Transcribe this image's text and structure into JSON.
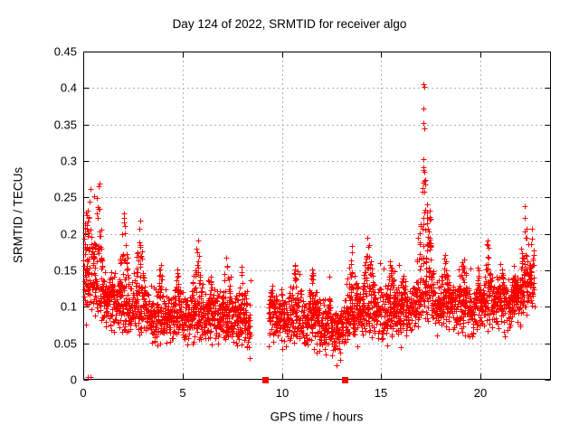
{
  "chart_data": {
    "type": "scatter",
    "title": "Day 124 of 2022, SRMTID for receiver algo",
    "xlabel": "GPS time / hours",
    "ylabel": "SRMTID / TECUs",
    "xlim": [
      0,
      23.55
    ],
    "ylim": [
      0,
      0.45
    ],
    "xticks": [
      0,
      5,
      10,
      15,
      20
    ],
    "xtick_labels": [
      "0",
      "5",
      "10",
      "15",
      "20"
    ],
    "yticks": [
      0,
      0.05,
      0.1,
      0.15,
      0.2,
      0.25,
      0.3,
      0.35,
      0.4,
      0.45
    ],
    "ytick_labels": [
      "0",
      "0.05",
      "0.1",
      "0.15",
      "0.2",
      "0.25",
      "0.3",
      "0.35",
      "0.4",
      "0.45"
    ],
    "grid": true,
    "grid_style": "dashed",
    "grid_color": "#b0b0b0",
    "axis_color": "#000000",
    "background_color": "#ffffff",
    "legend": null,
    "marker": {
      "shape": "plus",
      "size": 7,
      "color": "#ff0000"
    },
    "gap_markers": {
      "shape": "filled-square",
      "size": 7,
      "color": "#ff0000",
      "points": [
        [
          9.2,
          0
        ],
        [
          13.17,
          0
        ]
      ]
    },
    "outlier_points": [
      [
        17.12,
        0.405
      ],
      [
        17.17,
        0.402
      ],
      [
        17.13,
        0.372
      ],
      [
        17.15,
        0.352
      ],
      [
        17.18,
        0.345
      ],
      [
        17.14,
        0.302
      ],
      [
        17.2,
        0.268
      ],
      [
        17.1,
        0.258
      ],
      [
        0.82,
        0.269
      ],
      [
        0.36,
        0.262
      ],
      [
        0.55,
        0.252
      ],
      [
        0.3,
        0.244
      ],
      [
        12.75,
        0.02
      ],
      [
        0.23,
        0.004
      ],
      [
        0.36,
        0.004
      ]
    ],
    "scatter_model": {
      "comment": "Dense multi-satellite scatter ~0.05-0.15 TECU baseline; parameters reconstruct the depicted point cloud",
      "seed": 124124,
      "x_start": 0.02,
      "x_end": 22.72,
      "x_step": 0.01,
      "gap": [
        8.42,
        9.33
      ],
      "noise_sd": 0.016,
      "tail_prob": 0.2,
      "tail_scale": 0.05,
      "extra_point_prob": 0.35,
      "y_floor": 0.024,
      "baseline": [
        [
          0,
          0.125
        ],
        [
          0.4,
          0.118
        ],
        [
          0.8,
          0.112
        ],
        [
          1.2,
          0.102
        ],
        [
          2,
          0.098
        ],
        [
          3,
          0.09
        ],
        [
          3.6,
          0.082
        ],
        [
          4.2,
          0.08
        ],
        [
          5,
          0.084
        ],
        [
          6,
          0.082
        ],
        [
          7,
          0.08
        ],
        [
          7.6,
          0.082
        ],
        [
          8.42,
          0.07
        ],
        [
          9.33,
          0.078
        ],
        [
          10,
          0.08
        ],
        [
          10.8,
          0.083
        ],
        [
          11.5,
          0.078
        ],
        [
          12.2,
          0.07
        ],
        [
          12.7,
          0.062
        ],
        [
          13.1,
          0.068
        ],
        [
          13.5,
          0.088
        ],
        [
          14.2,
          0.092
        ],
        [
          14.8,
          0.096
        ],
        [
          15.2,
          0.082
        ],
        [
          15.8,
          0.09
        ],
        [
          16.4,
          0.088
        ],
        [
          17.0,
          0.11
        ],
        [
          17.4,
          0.115
        ],
        [
          17.9,
          0.098
        ],
        [
          18.6,
          0.1
        ],
        [
          19.3,
          0.095
        ],
        [
          19.7,
          0.09
        ],
        [
          20.2,
          0.1
        ],
        [
          20.8,
          0.102
        ],
        [
          21.4,
          0.098
        ],
        [
          22,
          0.11
        ],
        [
          22.4,
          0.122
        ],
        [
          22.72,
          0.128
        ]
      ],
      "spikes": [
        [
          0.15,
          0.2,
          0.23
        ],
        [
          0.25,
          0.35,
          0.24
        ],
        [
          0.75,
          0.25,
          0.268
        ],
        [
          1.4,
          0.2,
          0.15
        ],
        [
          2.05,
          0.25,
          0.232
        ],
        [
          2.85,
          0.25,
          0.222
        ],
        [
          3.9,
          0.18,
          0.163
        ],
        [
          4.75,
          0.2,
          0.152
        ],
        [
          5.75,
          0.3,
          0.193
        ],
        [
          6.4,
          0.2,
          0.145
        ],
        [
          7.2,
          0.25,
          0.168
        ],
        [
          8.0,
          0.25,
          0.155
        ],
        [
          9.5,
          0.18,
          0.132
        ],
        [
          10.0,
          0.15,
          0.125
        ],
        [
          10.65,
          0.2,
          0.162
        ],
        [
          11.55,
          0.25,
          0.155
        ],
        [
          12.4,
          0.15,
          0.118
        ],
        [
          13.5,
          0.3,
          0.188
        ],
        [
          14.35,
          0.3,
          0.196
        ],
        [
          15.5,
          0.3,
          0.165
        ],
        [
          16.1,
          0.2,
          0.145
        ],
        [
          17.15,
          0.35,
          0.295
        ],
        [
          17.45,
          0.2,
          0.24
        ],
        [
          18.2,
          0.25,
          0.175
        ],
        [
          19.1,
          0.2,
          0.168
        ],
        [
          19.9,
          0.15,
          0.15
        ],
        [
          20.35,
          0.2,
          0.198
        ],
        [
          21.05,
          0.25,
          0.162
        ],
        [
          21.7,
          0.2,
          0.15
        ],
        [
          22.25,
          0.25,
          0.238
        ],
        [
          22.6,
          0.12,
          0.208
        ]
      ]
    }
  }
}
